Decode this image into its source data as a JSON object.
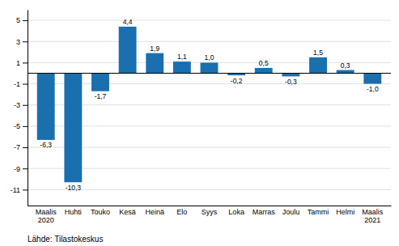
{
  "chart_data": {
    "type": "bar",
    "categories": [
      "Maalis\n2020",
      "Huhti",
      "Touko",
      "Kesä",
      "Heinä",
      "Elo",
      "Syys",
      "Loka",
      "Marras",
      "Joulu",
      "Tammi",
      "Helmi",
      "Maalis\n2021"
    ],
    "values": [
      -6.3,
      -10.3,
      -1.7,
      4.4,
      1.9,
      1.1,
      1.0,
      -0.2,
      0.5,
      -0.3,
      1.5,
      0.3,
      -1.0
    ],
    "value_labels": [
      "-6,3",
      "-10,3",
      "-1,7",
      "4,4",
      "1,9",
      "1,1",
      "1,0",
      "-0,2",
      "0,5",
      "-0,3",
      "1,5",
      "0,3",
      "-1,0"
    ],
    "data_labels": true,
    "color": "#1a6faf",
    "ylim": [
      -12.5,
      6.0
    ],
    "yticks": [
      -11,
      -9,
      -7,
      -5,
      -3,
      -1,
      1,
      3,
      5
    ],
    "grid": true,
    "annotations": [
      "Lähde: Tilastokeskus"
    ]
  }
}
